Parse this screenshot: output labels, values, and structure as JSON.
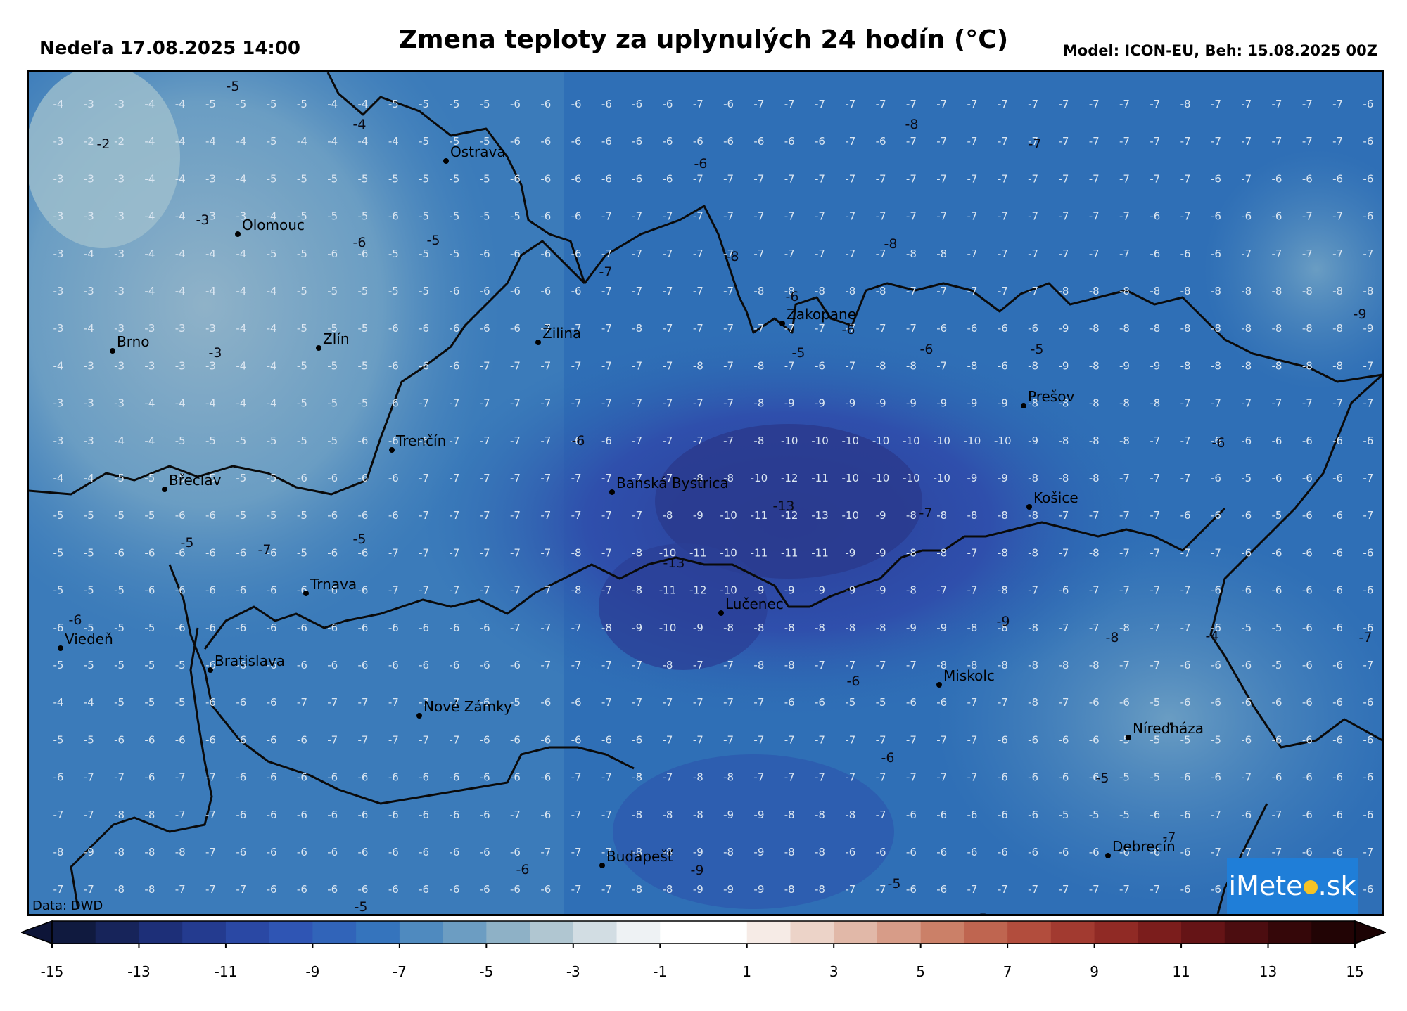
{
  "header": {
    "date": "Nedeľa 17.08.2025 14:00",
    "title": "Zmena teploty za uplynulých 24 hodín (°C)",
    "model": "Model: ICON-EU, Beh: 15.08.2025 00Z"
  },
  "map": {
    "data_source": "Data: DWD",
    "logo": {
      "prefix": "iMete",
      "suffix": ".sk"
    },
    "cities": [
      {
        "name": "Ostrava"
      },
      {
        "name": "Olomouc"
      },
      {
        "name": "Brno"
      },
      {
        "name": "Zlín"
      },
      {
        "name": "Žilina"
      },
      {
        "name": "Zakopane"
      },
      {
        "name": "Prešov"
      },
      {
        "name": "Trenčín"
      },
      {
        "name": "Břeclav"
      },
      {
        "name": "Banská Bystrica"
      },
      {
        "name": "Košice"
      },
      {
        "name": "Trnava"
      },
      {
        "name": "Lučenec"
      },
      {
        "name": "Viedeň"
      },
      {
        "name": "Bratislava"
      },
      {
        "name": "Miskolc"
      },
      {
        "name": "Nové Zámky"
      },
      {
        "name": "Níreďháza"
      },
      {
        "name": "Budapešť"
      },
      {
        "name": "Debrecín"
      }
    ],
    "contour_labels": [
      "-5",
      "-4",
      "-2",
      "-3",
      "-6",
      "-5",
      "-7",
      "-8",
      "-8",
      "-7",
      "-8",
      "-6",
      "-9",
      "-6",
      "-3",
      "-6",
      "-5",
      "-6",
      "-5",
      "-6",
      "-7",
      "-13",
      "-13",
      "-6",
      "-9",
      "-8",
      "-6",
      "-5",
      "-7",
      "-5",
      "-4",
      "-5",
      "-7",
      "-9",
      "-6",
      "-5",
      "-6",
      "-6",
      "-5",
      "-5",
      "-7"
    ],
    "grid_values": [
      [
        -4,
        -3,
        -3,
        -4,
        -4,
        -5,
        -5,
        -5,
        -5,
        -4,
        -4,
        -5,
        -5,
        -5,
        -5,
        -6,
        -6,
        -6,
        -6,
        -6,
        -6,
        -7,
        -6,
        -7,
        -7,
        -7,
        -7,
        -7,
        -7,
        -7,
        -7,
        -7,
        -7,
        -7,
        -7,
        -7,
        -7,
        -8,
        -7,
        -7,
        -7,
        -7,
        -7,
        -6
      ],
      [
        -3,
        -2,
        -2,
        -4,
        -4,
        -4,
        -4,
        -5,
        -4,
        -4,
        -4,
        -4,
        -5,
        -5,
        -5,
        -6,
        -6,
        -6,
        -6,
        -6,
        -6,
        -6,
        -6,
        -6,
        -6,
        -6,
        -7,
        -6,
        -7,
        -7,
        -7,
        -7,
        -7,
        -7,
        -7,
        -7,
        -7,
        -7,
        -7,
        -7,
        -7,
        -7,
        -7,
        -6
      ],
      [
        -3,
        -3,
        -3,
        -4,
        -4,
        -3,
        -4,
        -5,
        -5,
        -5,
        -5,
        -5,
        -5,
        -5,
        -5,
        -6,
        -6,
        -6,
        -6,
        -6,
        -6,
        -7,
        -7,
        -7,
        -7,
        -7,
        -7,
        -7,
        -7,
        -7,
        -7,
        -7,
        -7,
        -7,
        -7,
        -7,
        -7,
        -7,
        -6,
        -7,
        -6,
        -6,
        -6,
        -6
      ],
      [
        -3,
        -3,
        -3,
        -4,
        -4,
        -3,
        -3,
        -4,
        -5,
        -5,
        -5,
        -6,
        -5,
        -5,
        -5,
        -5,
        -6,
        -6,
        -7,
        -7,
        -7,
        -7,
        -7,
        -7,
        -7,
        -7,
        -7,
        -7,
        -7,
        -7,
        -7,
        -7,
        -7,
        -7,
        -7,
        -7,
        -6,
        -7,
        -6,
        -6,
        -6,
        -7,
        -7,
        -6
      ],
      [
        -3,
        -4,
        -3,
        -4,
        -4,
        -4,
        -4,
        -5,
        -5,
        -6,
        -6,
        -5,
        -5,
        -5,
        -6,
        -6,
        -6,
        -6,
        -7,
        -7,
        -7,
        -7,
        -7,
        -7,
        -7,
        -7,
        -7,
        -7,
        -8,
        -8,
        -7,
        -7,
        -7,
        -7,
        -7,
        -7,
        -6,
        -6,
        -6,
        -7,
        -7,
        -7,
        -7,
        -7
      ],
      [
        -3,
        -3,
        -3,
        -4,
        -4,
        -4,
        -4,
        -4,
        -5,
        -5,
        -5,
        -5,
        -5,
        -6,
        -6,
        -6,
        -6,
        -6,
        -7,
        -7,
        -7,
        -7,
        -7,
        -8,
        -8,
        -8,
        -8,
        -8,
        -7,
        -7,
        -7,
        -7,
        -7,
        -8,
        -8,
        -8,
        -8,
        -8,
        -8,
        -8,
        -8,
        -8,
        -8,
        -8
      ],
      [
        -3,
        -4,
        -3,
        -3,
        -3,
        -3,
        -4,
        -4,
        -5,
        -5,
        -5,
        -6,
        -6,
        -6,
        -6,
        -6,
        -7,
        -7,
        -7,
        -8,
        -7,
        -7,
        -7,
        -7,
        -7,
        -7,
        -7,
        -7,
        -7,
        -6,
        -6,
        -6,
        -6,
        -9,
        -8,
        -8,
        -8,
        -8,
        -8,
        -8,
        -8,
        -8,
        -8,
        -9
      ],
      [
        -4,
        -3,
        -3,
        -3,
        -3,
        -3,
        -4,
        -4,
        -5,
        -5,
        -5,
        -6,
        -6,
        -6,
        -7,
        -7,
        -7,
        -7,
        -7,
        -7,
        -7,
        -8,
        -7,
        -8,
        -7,
        -6,
        -7,
        -8,
        -8,
        -7,
        -8,
        -6,
        -8,
        -9,
        -8,
        -9,
        -9,
        -8,
        -8,
        -8,
        -8,
        -8,
        -8,
        -7
      ],
      [
        -3,
        -3,
        -3,
        -4,
        -4,
        -4,
        -4,
        -4,
        -5,
        -5,
        -5,
        -6,
        -7,
        -7,
        -7,
        -7,
        -7,
        -7,
        -7,
        -7,
        -7,
        -7,
        -7,
        -8,
        -9,
        -9,
        -9,
        -9,
        -9,
        -9,
        -9,
        -9,
        -8,
        -8,
        -8,
        -8,
        -8,
        -7,
        -7,
        -7,
        -7,
        -7,
        -7,
        -7
      ],
      [
        -3,
        -3,
        -4,
        -4,
        -5,
        -5,
        -5,
        -5,
        -5,
        -5,
        -6,
        -6,
        -6,
        -7,
        -7,
        -7,
        -7,
        -6,
        -6,
        -7,
        -7,
        -7,
        -7,
        -8,
        -10,
        -10,
        -10,
        -10,
        -10,
        -10,
        -10,
        -10,
        -9,
        -8,
        -8,
        -8,
        -7,
        -7,
        -6,
        -6,
        -6,
        -6,
        -6,
        -6
      ],
      [
        -4,
        -4,
        -5,
        -5,
        -5,
        -5,
        -5,
        -5,
        -6,
        -6,
        -6,
        -6,
        -7,
        -7,
        -7,
        -7,
        -7,
        -7,
        -7,
        -7,
        -7,
        -8,
        -8,
        -10,
        -12,
        -11,
        -10,
        -10,
        -10,
        -10,
        -9,
        -9,
        -8,
        -8,
        -8,
        -7,
        -7,
        -7,
        -6,
        -5,
        -6,
        -6,
        -6,
        -7
      ],
      [
        -5,
        -5,
        -5,
        -5,
        -6,
        -6,
        -5,
        -5,
        -5,
        -6,
        -6,
        -6,
        -7,
        -7,
        -7,
        -7,
        -7,
        -7,
        -7,
        -7,
        -8,
        -9,
        -10,
        -11,
        -12,
        -13,
        -10,
        -9,
        -8,
        -8,
        -8,
        -8,
        -8,
        -7,
        -7,
        -7,
        -7,
        -6,
        -6,
        -6,
        -5,
        -6,
        -6,
        -7
      ],
      [
        -5,
        -5,
        -6,
        -6,
        -6,
        -6,
        -6,
        -6,
        -5,
        -6,
        -6,
        -7,
        -7,
        -7,
        -7,
        -7,
        -7,
        -8,
        -7,
        -8,
        -10,
        -11,
        -10,
        -11,
        -11,
        -11,
        -9,
        -9,
        -8,
        -8,
        -7,
        -8,
        -8,
        -7,
        -8,
        -7,
        -7,
        -7,
        -7,
        -6,
        -6,
        -6,
        -6,
        -6
      ],
      [
        -5,
        -5,
        -5,
        -6,
        -6,
        -6,
        -6,
        -6,
        -6,
        -6,
        -6,
        -7,
        -7,
        -7,
        -7,
        -7,
        -7,
        -8,
        -7,
        -8,
        -11,
        -12,
        -10,
        -9,
        -9,
        -9,
        -9,
        -9,
        -8,
        -7,
        -7,
        -8,
        -7,
        -6,
        -7,
        -7,
        -7,
        -7,
        -6,
        -6,
        -6,
        -6,
        -6,
        -6
      ],
      [
        -6,
        -5,
        -5,
        -5,
        -6,
        -6,
        -6,
        -6,
        -6,
        -6,
        -6,
        -6,
        -6,
        -6,
        -6,
        -7,
        -7,
        -7,
        -8,
        -9,
        -10,
        -9,
        -8,
        -8,
        -8,
        -8,
        -8,
        -8,
        -9,
        -9,
        -8,
        -8,
        -8,
        -7,
        -7,
        -8,
        -7,
        -7,
        -6,
        -5,
        -5,
        -6,
        -6,
        -6
      ],
      [
        -5,
        -5,
        -5,
        -5,
        -5,
        -6,
        -6,
        -6,
        -6,
        -6,
        -6,
        -6,
        -6,
        -6,
        -6,
        -6,
        -7,
        -7,
        -7,
        -7,
        -8,
        -7,
        -7,
        -8,
        -8,
        -7,
        -7,
        -7,
        -7,
        -8,
        -8,
        -8,
        -8,
        -8,
        -8,
        -7,
        -7,
        -6,
        -6,
        -6,
        -5,
        -6,
        -6,
        -7
      ],
      [
        -4,
        -4,
        -5,
        -5,
        -5,
        -6,
        -6,
        -6,
        -7,
        -7,
        -7,
        -7,
        -7,
        -7,
        -6,
        -5,
        -6,
        -6,
        -7,
        -7,
        -7,
        -7,
        -7,
        -7,
        -6,
        -6,
        -5,
        -5,
        -6,
        -6,
        -7,
        -7,
        -8,
        -7,
        -6,
        -6,
        -5,
        -6,
        -6,
        -6,
        -6,
        -6,
        -6,
        -6
      ],
      [
        -5,
        -5,
        -6,
        -6,
        -6,
        -6,
        -6,
        -6,
        -6,
        -7,
        -7,
        -7,
        -7,
        -7,
        -6,
        -6,
        -6,
        -6,
        -6,
        -6,
        -7,
        -7,
        -7,
        -7,
        -7,
        -7,
        -7,
        -7,
        -7,
        -7,
        -7,
        -6,
        -6,
        -6,
        -6,
        -5,
        -5,
        -5,
        -5,
        -6,
        -6,
        -6,
        -6,
        -6
      ],
      [
        -6,
        -7,
        -7,
        -6,
        -7,
        -7,
        -6,
        -6,
        -6,
        -6,
        -6,
        -6,
        -6,
        -6,
        -6,
        -6,
        -6,
        -7,
        -7,
        -8,
        -7,
        -8,
        -8,
        -7,
        -7,
        -7,
        -7,
        -7,
        -7,
        -7,
        -7,
        -6,
        -6,
        -6,
        -6,
        -5,
        -5,
        -6,
        -6,
        -7,
        -6,
        -6,
        -6,
        -6
      ],
      [
        -7,
        -7,
        -8,
        -8,
        -7,
        -7,
        -6,
        -6,
        -6,
        -6,
        -6,
        -6,
        -6,
        -6,
        -6,
        -7,
        -6,
        -7,
        -7,
        -8,
        -8,
        -8,
        -9,
        -9,
        -8,
        -8,
        -8,
        -7,
        -6,
        -6,
        -6,
        -6,
        -6,
        -5,
        -5,
        -5,
        -6,
        -6,
        -7,
        -6,
        -7,
        -6,
        -6,
        -6
      ],
      [
        -8,
        -9,
        -8,
        -8,
        -8,
        -7,
        -6,
        -6,
        -6,
        -6,
        -6,
        -6,
        -6,
        -6,
        -6,
        -6,
        -7,
        -7,
        -7,
        -8,
        -8,
        -9,
        -8,
        -9,
        -8,
        -8,
        -6,
        -6,
        -6,
        -6,
        -6,
        -6,
        -6,
        -6,
        -6,
        -6,
        -6,
        -6,
        -7,
        -7,
        -7,
        -6,
        -6,
        -7
      ],
      [
        -7,
        -7,
        -8,
        -8,
        -7,
        -7,
        -7,
        -6,
        -6,
        -6,
        -6,
        -6,
        -6,
        -6,
        -6,
        -6,
        -6,
        -7,
        -7,
        -8,
        -8,
        -9,
        -9,
        -9,
        -8,
        -8,
        -7,
        -7,
        -6,
        -6,
        -7,
        -7,
        -7,
        -7,
        -7,
        -7,
        -7,
        -6,
        -6,
        -6,
        -6,
        -6,
        -6,
        -6
      ]
    ]
  },
  "colorbar": {
    "labels": [
      "-15",
      "-13",
      "-11",
      "-9",
      "-7",
      "-5",
      "-3",
      "-1",
      "1",
      "3",
      "5",
      "7",
      "9",
      "11",
      "13",
      "15"
    ],
    "colors": [
      "#101a3f",
      "#17245a",
      "#1d2f78",
      "#243b8f",
      "#2a48a4",
      "#2f55b4",
      "#3164b9",
      "#3574bd",
      "#4f8abf",
      "#6c9dc2",
      "#8eb1c6",
      "#b0c6d1",
      "#d2dde3",
      "#eef2f4",
      "#ffffff",
      "#ffffff",
      "#f6ebe6",
      "#ecd3c8",
      "#e1b8a8",
      "#d79c88",
      "#cb8068",
      "#bf6550",
      "#b24d3d",
      "#a23a30",
      "#902a25",
      "#7b1d1c",
      "#651416",
      "#4c0d10",
      "#350709",
      "#220405"
    ]
  }
}
